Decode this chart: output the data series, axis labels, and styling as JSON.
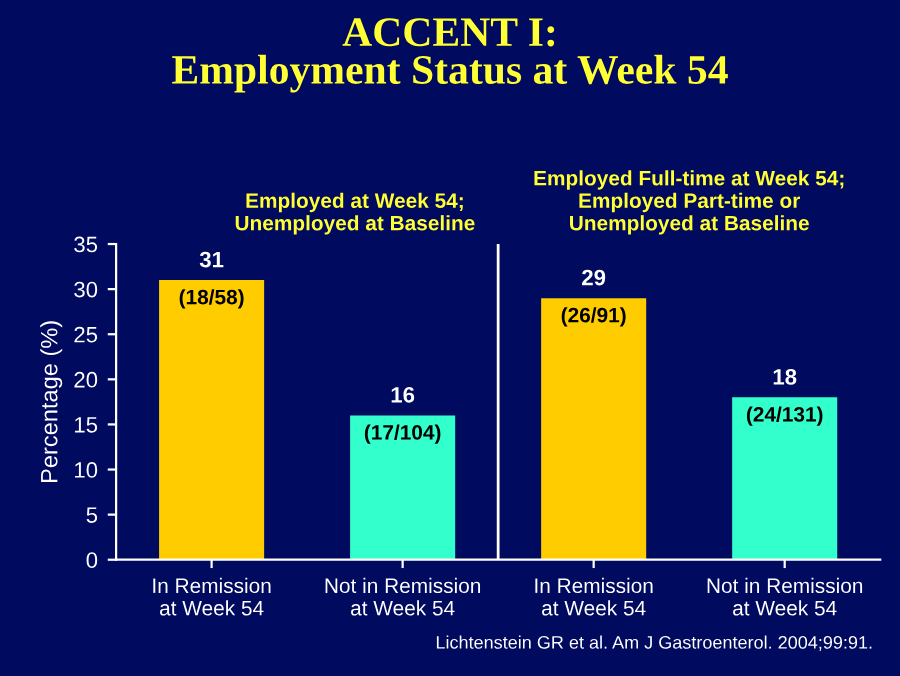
{
  "chart_data": {
    "type": "bar",
    "title": "ACCENT I:\nEmployment Status at Week 54",
    "ylabel": "Percentage (%)",
    "categories": [
      "In Remission\nat Week 54",
      "Not in Remission\nat Week 54",
      "In Remission\nat Week 54",
      "Not in Remission\nat Week 54"
    ],
    "values": [
      31,
      16,
      29,
      18
    ],
    "colors": [
      "#ffcc00",
      "#33ffcc",
      "#ffcc00",
      "#33ffcc"
    ],
    "data_labels": true,
    "ylim": [
      0,
      35
    ],
    "yticks": [
      0,
      5,
      10,
      15,
      20,
      25,
      30,
      35
    ],
    "grid": false,
    "legend": false,
    "annotations": [
      "Employed at Week 54;\nUnemployed at Baseline",
      "Employed Full-time at Week 54;\nEmployed Part-time or\nUnemployed at Baseline",
      "(18/58)",
      "(17/104)",
      "(26/91)",
      "(24/131)",
      "Lichtenstein GR et al. Am J Gastroenterol. 2004;99:91."
    ]
  }
}
